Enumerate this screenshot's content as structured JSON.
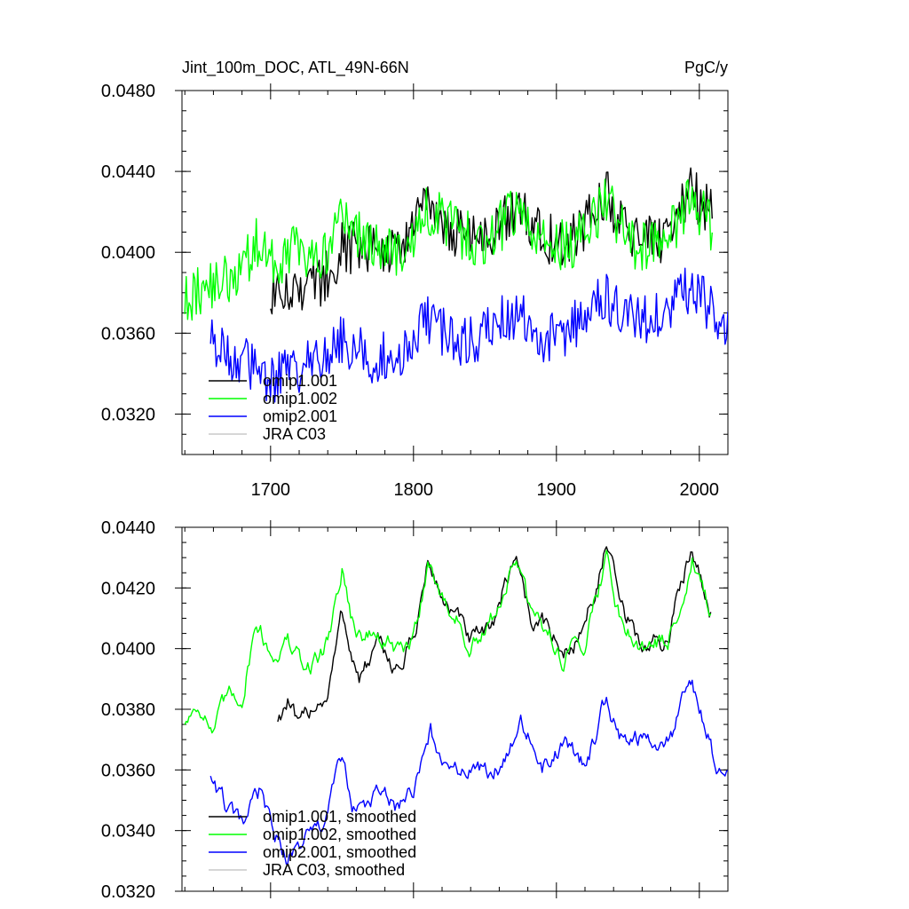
{
  "chart_data": [
    {
      "type": "line",
      "title": "Jint_100m_DOC, ATL_49N-66N",
      "units": "PgC/y",
      "xlim": [
        1638,
        2020
      ],
      "ylim": [
        0.03,
        0.048
      ],
      "yticks": [
        "0.0480",
        "0.0440",
        "0.0400",
        "0.0360",
        "0.0320"
      ],
      "ytick_values": [
        0.048,
        0.044,
        0.04,
        0.036,
        0.032
      ],
      "xticks": [
        "1700",
        "1800",
        "1900",
        "2000"
      ],
      "xtick_values": [
        1700,
        1800,
        1900,
        2000
      ],
      "legend_position": "bottom-left",
      "series": [
        {
          "name": "omip1.001",
          "color": "#000000",
          "keypoints": [
            [
              1700,
              0.0378
            ],
            [
              1720,
              0.0382
            ],
            [
              1735,
              0.0385
            ],
            [
              1750,
              0.0402
            ],
            [
              1770,
              0.0403
            ],
            [
              1790,
              0.0401
            ],
            [
              1810,
              0.0422
            ],
            [
              1830,
              0.041
            ],
            [
              1850,
              0.0404
            ],
            [
              1872,
              0.0422
            ],
            [
              1890,
              0.0408
            ],
            [
              1910,
              0.0404
            ],
            [
              1935,
              0.0428
            ],
            [
              1955,
              0.0405
            ],
            [
              1975,
              0.0406
            ],
            [
              1995,
              0.043
            ],
            [
              2009,
              0.0418
            ]
          ],
          "start": 1700,
          "end": 2009
        },
        {
          "name": "omip1.002",
          "color": "#00ff00",
          "keypoints": [
            [
              1640,
              0.0375
            ],
            [
              1660,
              0.0385
            ],
            [
              1680,
              0.039
            ],
            [
              1690,
              0.0405
            ],
            [
              1700,
              0.0395
            ],
            [
              1720,
              0.0402
            ],
            [
              1735,
              0.0396
            ],
            [
              1750,
              0.0417
            ],
            [
              1770,
              0.0405
            ],
            [
              1790,
              0.0397
            ],
            [
              1810,
              0.0422
            ],
            [
              1830,
              0.041
            ],
            [
              1850,
              0.0404
            ],
            [
              1872,
              0.0422
            ],
            [
              1890,
              0.0406
            ],
            [
              1910,
              0.0402
            ],
            [
              1935,
              0.0425
            ],
            [
              1955,
              0.0402
            ],
            [
              1975,
              0.0404
            ],
            [
              1995,
              0.0428
            ],
            [
              2009,
              0.041
            ]
          ],
          "start": 1640,
          "end": 2009
        },
        {
          "name": "omip2.001",
          "color": "#0000ff",
          "keypoints": [
            [
              1658,
              0.036
            ],
            [
              1670,
              0.0348
            ],
            [
              1685,
              0.0345
            ],
            [
              1700,
              0.0338
            ],
            [
              1715,
              0.034
            ],
            [
              1730,
              0.0345
            ],
            [
              1750,
              0.0357
            ],
            [
              1770,
              0.0348
            ],
            [
              1790,
              0.035
            ],
            [
              1812,
              0.0368
            ],
            [
              1830,
              0.0352
            ],
            [
              1850,
              0.036
            ],
            [
              1875,
              0.0372
            ],
            [
              1890,
              0.0356
            ],
            [
              1910,
              0.0362
            ],
            [
              1935,
              0.0378
            ],
            [
              1955,
              0.0366
            ],
            [
              1975,
              0.0368
            ],
            [
              1995,
              0.0385
            ],
            [
              2010,
              0.0368
            ],
            [
              2020,
              0.036
            ]
          ],
          "start": 1658,
          "end": 2020
        },
        {
          "name": "JRA C03",
          "color": "#c8c8c8",
          "values": []
        }
      ]
    },
    {
      "type": "line",
      "title": "",
      "ylim": [
        0.032,
        0.044
      ],
      "yticks": [
        "0.0440",
        "0.0420",
        "0.0400",
        "0.0380",
        "0.0360",
        "0.0340",
        "0.0320"
      ],
      "ytick_values": [
        0.044,
        0.042,
        0.04,
        0.038,
        0.036,
        0.034,
        0.032
      ],
      "xlim": [
        1638,
        2020
      ],
      "legend_position": "bottom-left",
      "series": [
        {
          "name": "omip1.001, smoothed",
          "color": "#000000",
          "keypoints": [
            [
              1705,
              0.0377
            ],
            [
              1712,
              0.0383
            ],
            [
              1720,
              0.0372
            ],
            [
              1730,
              0.0382
            ],
            [
              1740,
              0.0385
            ],
            [
              1750,
              0.0411
            ],
            [
              1762,
              0.039
            ],
            [
              1775,
              0.04
            ],
            [
              1790,
              0.0393
            ],
            [
              1800,
              0.0403
            ],
            [
              1810,
              0.0428
            ],
            [
              1820,
              0.0417
            ],
            [
              1830,
              0.041
            ],
            [
              1840,
              0.0402
            ],
            [
              1852,
              0.0404
            ],
            [
              1872,
              0.0432
            ],
            [
              1882,
              0.041
            ],
            [
              1895,
              0.0407
            ],
            [
              1905,
              0.0397
            ],
            [
              1920,
              0.0408
            ],
            [
              1935,
              0.0434
            ],
            [
              1945,
              0.0413
            ],
            [
              1960,
              0.04
            ],
            [
              1978,
              0.0403
            ],
            [
              1995,
              0.0435
            ],
            [
              2008,
              0.0413
            ]
          ],
          "start": 1705,
          "end": 2008
        },
        {
          "name": "omip1.002, smoothed",
          "color": "#00ff00",
          "keypoints": [
            [
              1640,
              0.0376
            ],
            [
              1650,
              0.0383
            ],
            [
              1660,
              0.0372
            ],
            [
              1670,
              0.0383
            ],
            [
              1680,
              0.0385
            ],
            [
              1690,
              0.041
            ],
            [
              1700,
              0.0398
            ],
            [
              1712,
              0.0402
            ],
            [
              1725,
              0.0392
            ],
            [
              1740,
              0.0402
            ],
            [
              1750,
              0.0427
            ],
            [
              1760,
              0.0404
            ],
            [
              1775,
              0.0404
            ],
            [
              1790,
              0.0398
            ],
            [
              1800,
              0.0402
            ],
            [
              1810,
              0.043
            ],
            [
              1820,
              0.0416
            ],
            [
              1830,
              0.0411
            ],
            [
              1840,
              0.0399
            ],
            [
              1852,
              0.0405
            ],
            [
              1872,
              0.043
            ],
            [
              1882,
              0.041
            ],
            [
              1895,
              0.0405
            ],
            [
              1905,
              0.0397
            ],
            [
              1920,
              0.0404
            ],
            [
              1935,
              0.043
            ],
            [
              1945,
              0.041
            ],
            [
              1960,
              0.0401
            ],
            [
              1978,
              0.0402
            ],
            [
              1995,
              0.043
            ],
            [
              2008,
              0.041
            ]
          ],
          "start": 1640,
          "end": 2008
        },
        {
          "name": "omip2.001, smoothed",
          "color": "#0000ff",
          "keypoints": [
            [
              1658,
              0.0359
            ],
            [
              1668,
              0.0348
            ],
            [
              1680,
              0.034
            ],
            [
              1692,
              0.0352
            ],
            [
              1700,
              0.0342
            ],
            [
              1712,
              0.033
            ],
            [
              1722,
              0.0337
            ],
            [
              1735,
              0.034
            ],
            [
              1750,
              0.0363
            ],
            [
              1760,
              0.0345
            ],
            [
              1775,
              0.0352
            ],
            [
              1790,
              0.0347
            ],
            [
              1800,
              0.0352
            ],
            [
              1812,
              0.0373
            ],
            [
              1825,
              0.0356
            ],
            [
              1840,
              0.0362
            ],
            [
              1855,
              0.0356
            ],
            [
              1875,
              0.0378
            ],
            [
              1890,
              0.0361
            ],
            [
              1905,
              0.0368
            ],
            [
              1920,
              0.0361
            ],
            [
              1935,
              0.0384
            ],
            [
              1945,
              0.0372
            ],
            [
              1960,
              0.037
            ],
            [
              1978,
              0.0368
            ],
            [
              1995,
              0.0388
            ],
            [
              2005,
              0.0375
            ],
            [
              2012,
              0.036
            ],
            [
              2020,
              0.0365
            ]
          ],
          "start": 1658,
          "end": 2020
        },
        {
          "name": "JRA C03, smoothed",
          "color": "#c8c8c8",
          "values": []
        }
      ]
    }
  ]
}
